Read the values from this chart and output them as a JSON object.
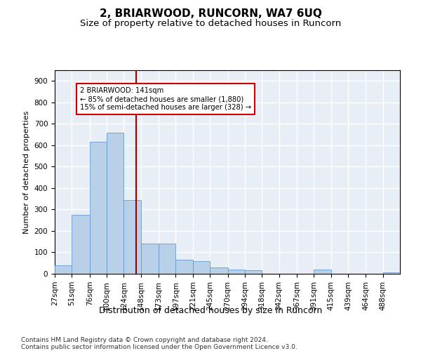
{
  "title": "2, BRIARWOOD, RUNCORN, WA7 6UQ",
  "subtitle": "Size of property relative to detached houses in Runcorn",
  "xlabel": "Distribution of detached houses by size in Runcorn",
  "ylabel": "Number of detached properties",
  "bar_color": "#b8d0e8",
  "bar_edge_color": "#6699cc",
  "background_color": "#e8eef5",
  "grid_color": "#ffffff",
  "vline_x": 141,
  "vline_color": "#990000",
  "annotation_text": "2 BRIARWOOD: 141sqm\n← 85% of detached houses are smaller (1,880)\n15% of semi-detached houses are larger (328) →",
  "annotation_box_color": "white",
  "annotation_box_edge": "#cc0000",
  "bin_edges": [
    27,
    51,
    76,
    100,
    124,
    148,
    173,
    197,
    221,
    245,
    270,
    294,
    318,
    342,
    367,
    391,
    415,
    439,
    464,
    488,
    512
  ],
  "bar_heights": [
    40,
    275,
    615,
    660,
    345,
    140,
    140,
    65,
    60,
    30,
    20,
    15,
    0,
    0,
    0,
    20,
    0,
    0,
    0,
    5
  ],
  "ylim": [
    0,
    950
  ],
  "yticks": [
    0,
    100,
    200,
    300,
    400,
    500,
    600,
    700,
    800,
    900
  ],
  "footer": "Contains HM Land Registry data © Crown copyright and database right 2024.\nContains public sector information licensed under the Open Government Licence v3.0.",
  "title_fontsize": 11,
  "subtitle_fontsize": 9.5,
  "xlabel_fontsize": 9,
  "ylabel_fontsize": 8,
  "tick_fontsize": 7.5,
  "footer_fontsize": 6.5
}
